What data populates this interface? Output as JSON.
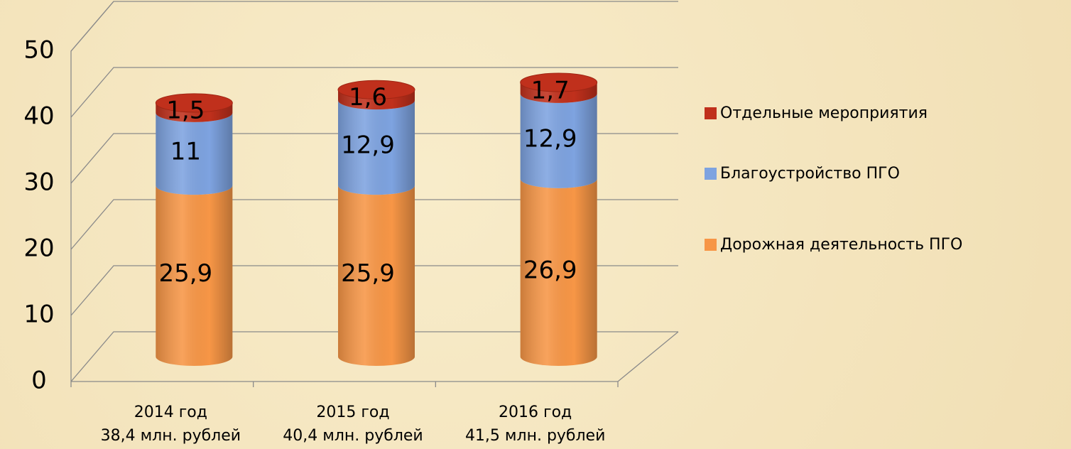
{
  "chart_data": {
    "type": "bar",
    "stacked": true,
    "categories": [
      "2014 год",
      "2015 год",
      "2016 год"
    ],
    "category_sublabels": [
      "38,4  млн. рублей",
      "40,4 млн. рублей",
      "41,5 млн. рублей"
    ],
    "series": [
      {
        "name": "Дорожная деятельность ПГО",
        "color": "#f79646",
        "values": [
          25.9,
          25.9,
          26.9
        ],
        "value_labels": [
          "25,9",
          "25,9",
          "26,9"
        ]
      },
      {
        "name": "Благоустройство ПГО",
        "color": "#7ea3e0",
        "values": [
          11,
          12.9,
          12.9
        ],
        "value_labels": [
          "11",
          "12,9",
          "12,9"
        ]
      },
      {
        "name": "Отдельные мероприятия",
        "color": "#c0301c",
        "values": [
          1.5,
          1.6,
          1.7
        ],
        "value_labels": [
          "1,5",
          "1,6",
          "1,7"
        ]
      }
    ],
    "ylim": [
      0,
      50
    ],
    "yticks": [
      0,
      10,
      20,
      30,
      40,
      50
    ],
    "grid": true,
    "legend": "right"
  }
}
